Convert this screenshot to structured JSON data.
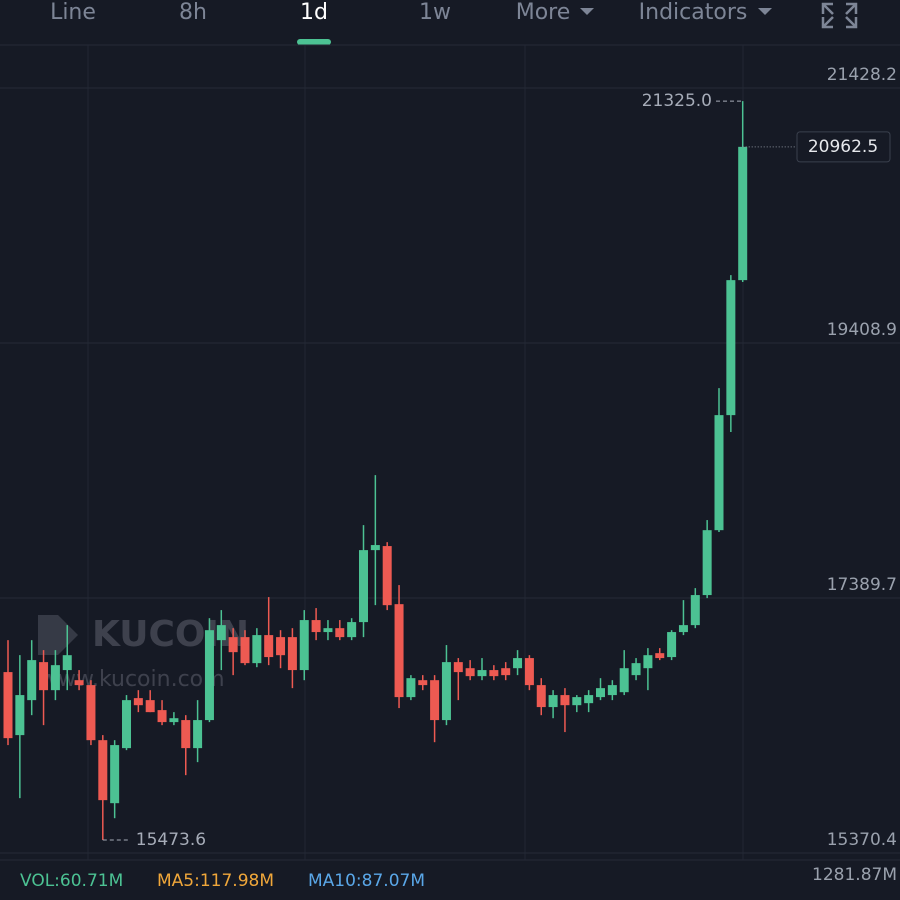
{
  "toolbar": {
    "tabs": [
      "Line",
      "8h",
      "1d",
      "1w",
      "More",
      "Indicators"
    ],
    "active": 2
  },
  "watermark": {
    "logo": "KUCOIN",
    "url": "www.kucoin.com"
  },
  "chart_data": {
    "type": "candlestick",
    "up_color": "#4cc293",
    "down_color": "#ee5a52",
    "ylim": [
      15315,
      21769
    ],
    "yticks": [
      15370.4,
      17389.7,
      19408.9,
      21428.2
    ],
    "grid": true,
    "open": [
      16803,
      16304,
      16581,
      16882,
      16660,
      16819,
      16739,
      16700,
      16264,
      15765,
      16201,
      16597,
      16581,
      16502,
      16407,
      16423,
      16201,
      16423,
      17056,
      17080,
      17080,
      16874,
      17096,
      17080,
      17080,
      16819,
      17215,
      17120,
      17151,
      17080,
      17199,
      17769,
      17801,
      17341,
      16605,
      16739,
      16739,
      16423,
      16882,
      16834,
      16771,
      16819,
      16834,
      16834,
      16914,
      16700,
      16526,
      16621,
      16541,
      16557,
      16605,
      16621,
      16644,
      16779,
      16834,
      16953,
      16922,
      17120,
      17175,
      17413,
      17927,
      18838,
      19907
    ],
    "high": [
      17056,
      16937,
      17056,
      16977,
      16977,
      17175,
      16819,
      16739,
      16304,
      16264,
      16621,
      16660,
      16660,
      16581,
      16486,
      16462,
      16581,
      17230,
      17294,
      17151,
      17135,
      17151,
      17397,
      17135,
      17151,
      17294,
      17310,
      17215,
      17215,
      17230,
      17967,
      18363,
      17832,
      17492,
      16779,
      16779,
      16779,
      17017,
      16914,
      16898,
      16914,
      16858,
      16882,
      16977,
      16937,
      16755,
      16660,
      16676,
      16621,
      16660,
      16755,
      16739,
      16977,
      16914,
      16993,
      16993,
      17135,
      17373,
      17468,
      18007,
      19052,
      19947,
      21325
    ],
    "low": [
      16225,
      15805,
      16462,
      16383,
      16581,
      16660,
      16660,
      16225,
      15473.6,
      15646,
      16185,
      16486,
      16486,
      16383,
      16383,
      15987,
      16090,
      16407,
      16819,
      16779,
      16858,
      16842,
      16858,
      16834,
      16676,
      16739,
      17056,
      17056,
      17056,
      17056,
      17080,
      17333,
      17294,
      16518,
      16581,
      16660,
      16248,
      16383,
      16581,
      16739,
      16739,
      16739,
      16739,
      16779,
      16660,
      16462,
      16438,
      16328,
      16486,
      16486,
      16581,
      16581,
      16621,
      16739,
      16660,
      16898,
      16898,
      17096,
      17151,
      17389,
      17912,
      18704,
      19892
    ],
    "close": [
      16280,
      16621,
      16898,
      16660,
      16858,
      16937,
      16700,
      16264,
      15789,
      16225,
      16581,
      16541,
      16486,
      16407,
      16438,
      16201,
      16423,
      17135,
      17175,
      16961,
      16874,
      17096,
      16922,
      16937,
      16819,
      17215,
      17120,
      17151,
      17080,
      17199,
      17769,
      17809,
      17333,
      16605,
      16755,
      16700,
      16423,
      16882,
      16803,
      16771,
      16819,
      16771,
      16779,
      16914,
      16700,
      16526,
      16621,
      16541,
      16605,
      16621,
      16676,
      16700,
      16834,
      16874,
      16937,
      16914,
      17120,
      17175,
      17413,
      17927,
      18838,
      19907,
      20962.5
    ],
    "high_marker": {
      "value": 21325,
      "label": "21325.0"
    },
    "low_marker": {
      "value": 15473.6,
      "label": "15473.6"
    },
    "last_price": {
      "value": 20962.5,
      "label": "20962.5"
    }
  },
  "volume_legend": {
    "vol": "VOL:60.71M",
    "ma5": "MA5:117.98M",
    "ma10": "MA10:87.07M",
    "scale": "1281.87M"
  }
}
